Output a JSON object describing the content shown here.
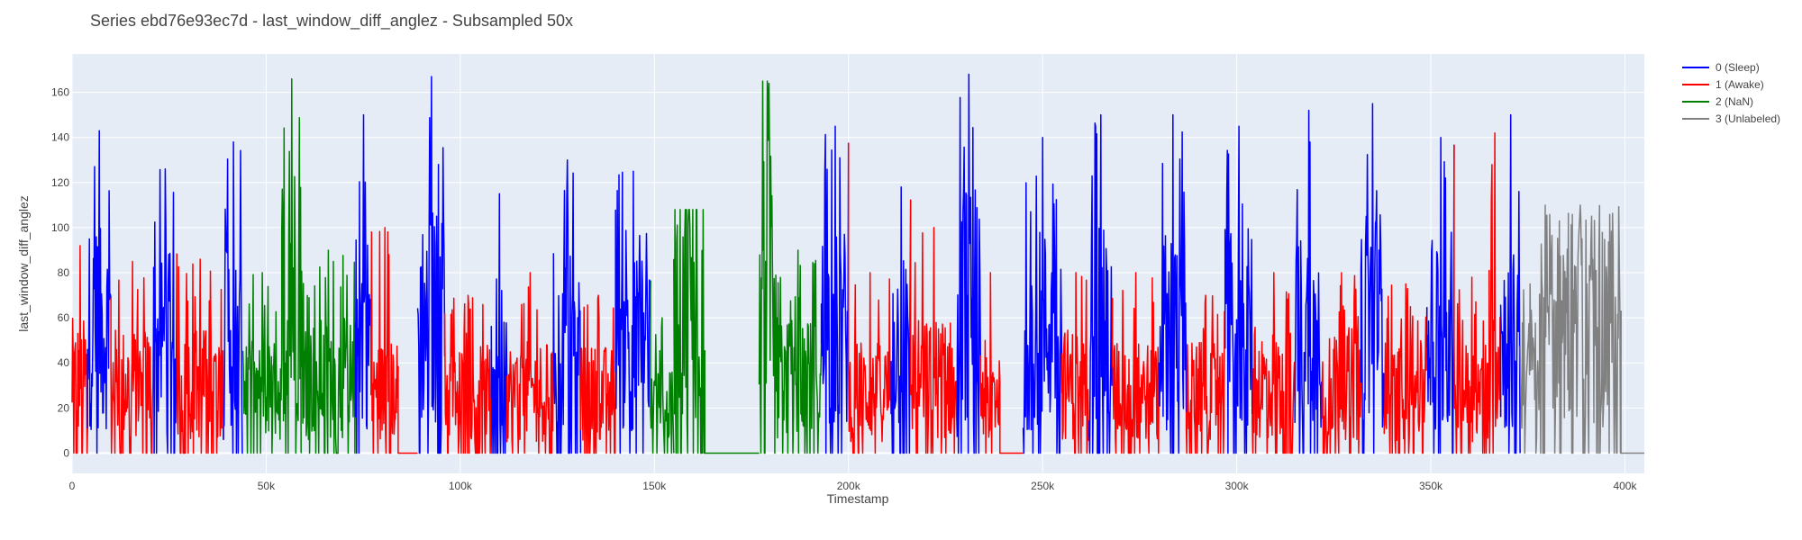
{
  "chart_data": {
    "type": "line",
    "title": "Series ebd76e93ec7d - last_window_diff_anglez - Subsampled 50x",
    "xlabel": "Timestamp",
    "ylabel": "last_window_diff_anglez",
    "xlim": [
      0,
      405000
    ],
    "ylim": [
      -9,
      177
    ],
    "x_ticks": [
      0,
      50000,
      100000,
      150000,
      200000,
      250000,
      300000,
      350000,
      400000
    ],
    "x_tick_labels": [
      "0",
      "50k",
      "100k",
      "150k",
      "200k",
      "250k",
      "300k",
      "350k",
      "400k"
    ],
    "y_ticks": [
      0,
      20,
      40,
      60,
      80,
      100,
      120,
      140,
      160
    ],
    "y_tick_labels": [
      "0",
      "20",
      "40",
      "60",
      "80",
      "100",
      "120",
      "140",
      "160"
    ],
    "grid": true,
    "legend_position": "top-right",
    "colors": {
      "0": "#0000ff",
      "1": "#ff0000",
      "2": "#008000",
      "3": "#808080"
    },
    "series": [
      {
        "name": "0 (Sleep)",
        "label": 0
      },
      {
        "name": "1 (Awake)",
        "label": 1
      },
      {
        "name": "2 (NaN)",
        "label": 2
      },
      {
        "name": "3 (Unlabeled)",
        "label": 3
      }
    ],
    "segments": [
      {
        "label": 1,
        "x": [
          0,
          4000
        ],
        "peak": 92,
        "base": 30,
        "flat": false
      },
      {
        "label": 0,
        "x": [
          4000,
          10000
        ],
        "peak": 143,
        "base": 50,
        "flat": false
      },
      {
        "label": 1,
        "x": [
          10000,
          21000
        ],
        "peak": 85,
        "base": 28,
        "flat": false
      },
      {
        "label": 0,
        "x": [
          21000,
          27000
        ],
        "peak": 126,
        "base": 45,
        "flat": false
      },
      {
        "label": 1,
        "x": [
          27000,
          39000
        ],
        "peak": 86,
        "base": 28,
        "flat": false
      },
      {
        "label": 0,
        "x": [
          39000,
          44000
        ],
        "peak": 138,
        "base": 50,
        "flat": false
      },
      {
        "label": 2,
        "x": [
          44000,
          54000
        ],
        "peak": 80,
        "base": 25,
        "flat": false
      },
      {
        "label": 2,
        "x": [
          54000,
          59000
        ],
        "peak": 166,
        "base": 65,
        "flat": false
      },
      {
        "label": 2,
        "x": [
          59000,
          73000
        ],
        "peak": 90,
        "base": 30,
        "flat": false
      },
      {
        "label": 0,
        "x": [
          73000,
          77000
        ],
        "peak": 150,
        "base": 50,
        "flat": false
      },
      {
        "label": 1,
        "x": [
          77000,
          84000
        ],
        "peak": 100,
        "base": 25,
        "flat": false
      },
      {
        "label": 1,
        "x": [
          84000,
          89000
        ],
        "peak": 0,
        "base": 0,
        "flat": true
      },
      {
        "label": 0,
        "x": [
          89000,
          96000
        ],
        "peak": 167,
        "base": 55,
        "flat": false
      },
      {
        "label": 1,
        "x": [
          96000,
          108000
        ],
        "peak": 70,
        "base": 24,
        "flat": false
      },
      {
        "label": 0,
        "x": [
          108000,
          112000
        ],
        "peak": 115,
        "base": 40,
        "flat": false
      },
      {
        "label": 1,
        "x": [
          112000,
          124000
        ],
        "peak": 80,
        "base": 25,
        "flat": false
      },
      {
        "label": 0,
        "x": [
          124000,
          131000
        ],
        "peak": 130,
        "base": 45,
        "flat": false
      },
      {
        "label": 1,
        "x": [
          131000,
          140000
        ],
        "peak": 70,
        "base": 24,
        "flat": false
      },
      {
        "label": 0,
        "x": [
          140000,
          149000
        ],
        "peak": 125,
        "base": 45,
        "flat": false
      },
      {
        "label": 2,
        "x": [
          149000,
          155000
        ],
        "peak": 60,
        "base": 18,
        "flat": false
      },
      {
        "label": 2,
        "x": [
          155000,
          163000
        ],
        "peak": 108,
        "base": 70,
        "flat": false
      },
      {
        "label": 2,
        "x": [
          163000,
          177000
        ],
        "peak": 0,
        "base": 0,
        "flat": true
      },
      {
        "label": 2,
        "x": [
          177000,
          181000
        ],
        "peak": 165,
        "base": 85,
        "flat": false
      },
      {
        "label": 2,
        "x": [
          181000,
          193000
        ],
        "peak": 90,
        "base": 30,
        "flat": false
      },
      {
        "label": 0,
        "x": [
          193000,
          200000
        ],
        "peak": 145,
        "base": 50,
        "flat": false
      },
      {
        "label": 1,
        "x": [
          200000,
          211000
        ],
        "peak": 80,
        "base": 25,
        "flat": false
      },
      {
        "label": 0,
        "x": [
          211000,
          216000
        ],
        "peak": 118,
        "base": 45,
        "flat": false
      },
      {
        "label": 1,
        "x": [
          216000,
          228000
        ],
        "peak": 100,
        "base": 30,
        "flat": false
      },
      {
        "label": 0,
        "x": [
          228000,
          234000
        ],
        "peak": 168,
        "base": 60,
        "flat": false
      },
      {
        "label": 1,
        "x": [
          234000,
          239000
        ],
        "peak": 80,
        "base": 25,
        "flat": false
      },
      {
        "label": 1,
        "x": [
          239000,
          245000
        ],
        "peak": 0,
        "base": 0,
        "flat": true
      },
      {
        "label": 0,
        "x": [
          245000,
          255000
        ],
        "peak": 140,
        "base": 50,
        "flat": false
      },
      {
        "label": 1,
        "x": [
          255000,
          262000
        ],
        "peak": 80,
        "base": 28,
        "flat": false
      },
      {
        "label": 0,
        "x": [
          262000,
          268000
        ],
        "peak": 150,
        "base": 50,
        "flat": false
      },
      {
        "label": 1,
        "x": [
          268000,
          280000
        ],
        "peak": 80,
        "base": 25,
        "flat": false
      },
      {
        "label": 0,
        "x": [
          280000,
          287000
        ],
        "peak": 150,
        "base": 50,
        "flat": false
      },
      {
        "label": 1,
        "x": [
          287000,
          297000
        ],
        "peak": 70,
        "base": 25,
        "flat": false
      },
      {
        "label": 0,
        "x": [
          297000,
          304000
        ],
        "peak": 145,
        "base": 50,
        "flat": false
      },
      {
        "label": 1,
        "x": [
          304000,
          315000
        ],
        "peak": 80,
        "base": 28,
        "flat": false
      },
      {
        "label": 0,
        "x": [
          315000,
          322000
        ],
        "peak": 152,
        "base": 50,
        "flat": false
      },
      {
        "label": 1,
        "x": [
          322000,
          332000
        ],
        "peak": 80,
        "base": 28,
        "flat": false
      },
      {
        "label": 0,
        "x": [
          332000,
          338000
        ],
        "peak": 155,
        "base": 55,
        "flat": false
      },
      {
        "label": 1,
        "x": [
          338000,
          349000
        ],
        "peak": 75,
        "base": 25,
        "flat": false
      },
      {
        "label": 0,
        "x": [
          349000,
          356000
        ],
        "peak": 140,
        "base": 50,
        "flat": false
      },
      {
        "label": 1,
        "x": [
          356000,
          365000
        ],
        "peak": 78,
        "base": 25,
        "flat": false
      },
      {
        "label": 1,
        "x": [
          365000,
          368000
        ],
        "peak": 142,
        "base": 45,
        "flat": false
      },
      {
        "label": 0,
        "x": [
          368000,
          373000
        ],
        "peak": 150,
        "base": 45,
        "flat": false
      },
      {
        "label": 3,
        "x": [
          373000,
          378000
        ],
        "peak": 75,
        "base": 30,
        "flat": false
      },
      {
        "label": 3,
        "x": [
          378000,
          399000
        ],
        "peak": 110,
        "base": 55,
        "flat": false
      },
      {
        "label": 3,
        "x": [
          399000,
          405000
        ],
        "peak": 0,
        "base": 0,
        "flat": true
      }
    ]
  }
}
